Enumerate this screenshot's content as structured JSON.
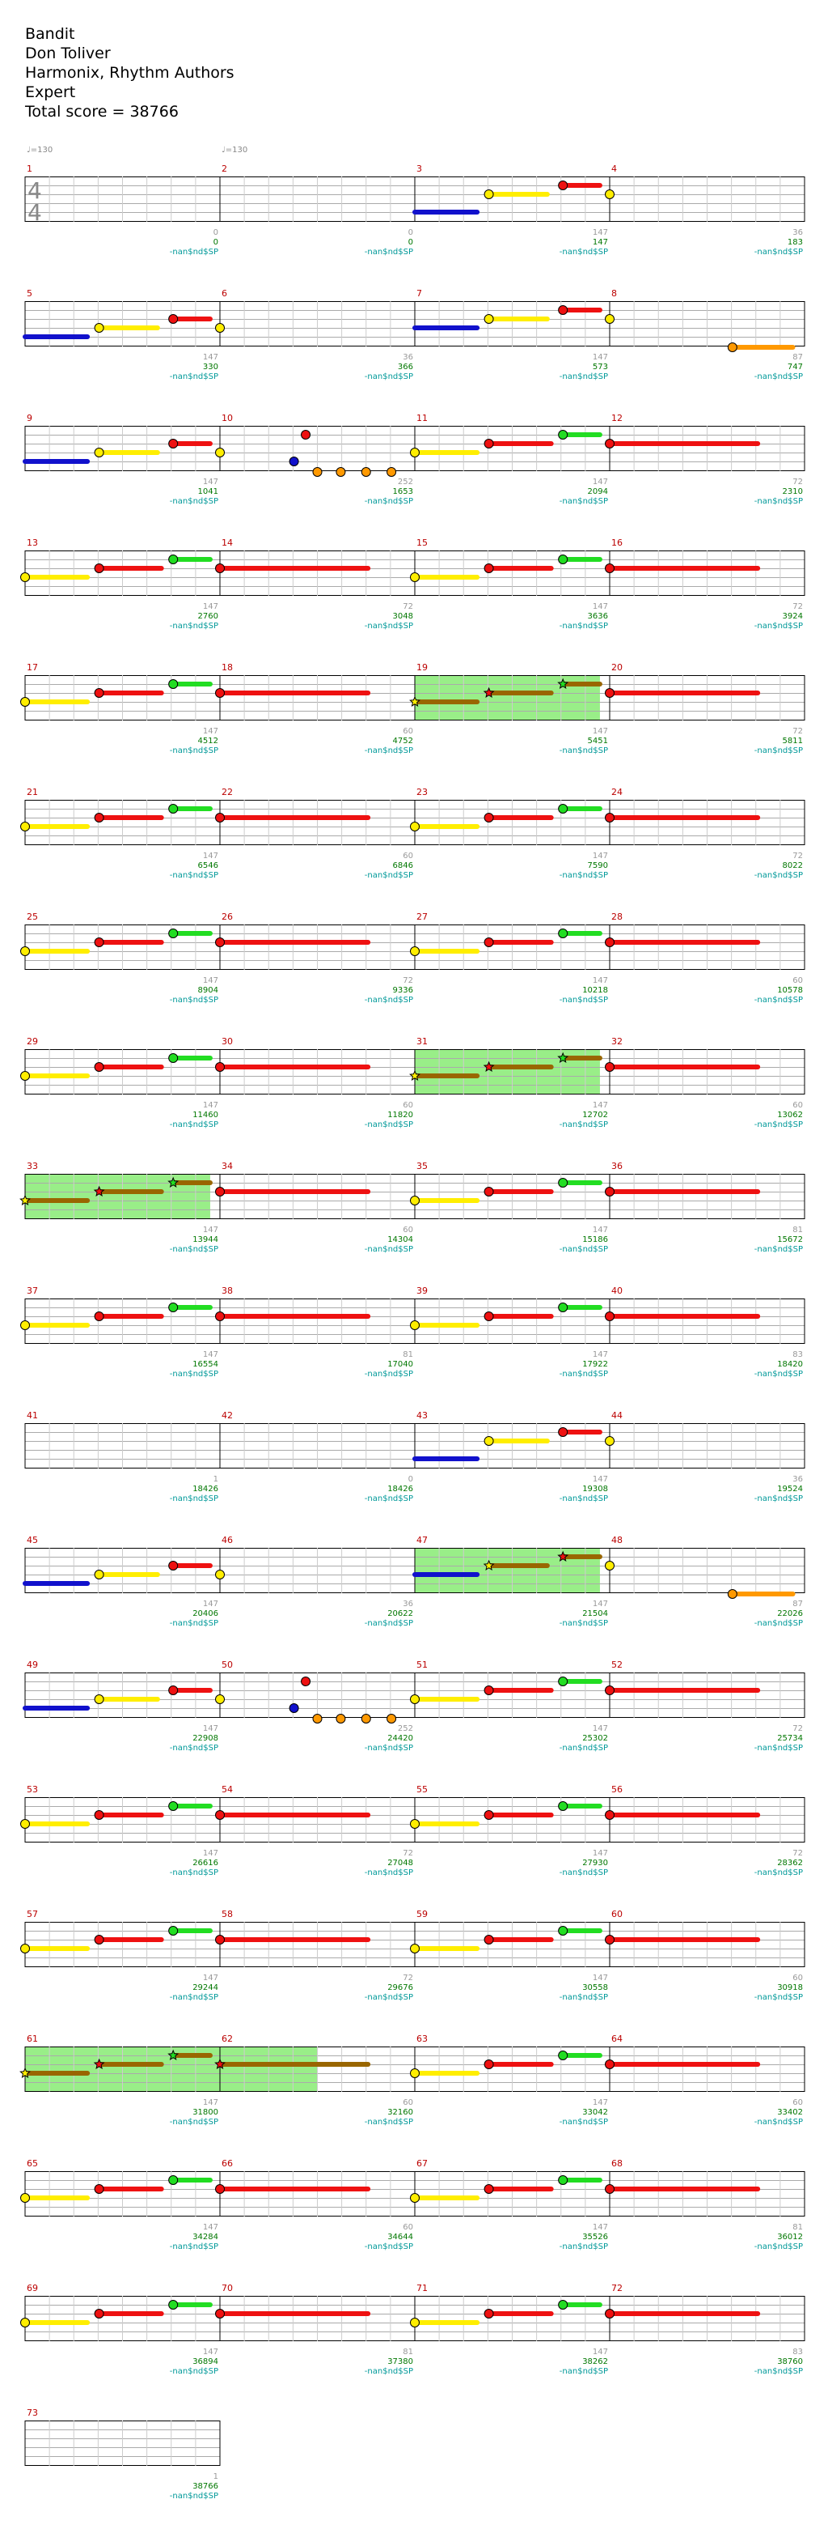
{
  "song": {
    "title": "Bandit",
    "artist": "Don Toliver",
    "charter": "Harmonix, Rhythm Authors",
    "difficulty": "Expert",
    "total_score_label": "Total score = 38766"
  },
  "chart_data": {
    "type": "note-chart",
    "tempo_marks": [
      {
        "measure": 1,
        "label": "♩=130"
      },
      {
        "measure": 2,
        "label": "♩=130"
      }
    ],
    "time_signature": {
      "measure": 1,
      "top": "4",
      "bottom": "4"
    },
    "rows": [
      [
        {
          "m": 1,
          "ticks": "",
          "score": "",
          "sp": ""
        },
        {
          "m": 2,
          "ticks": "0",
          "score": "0",
          "sp": "-nan$nd$SP"
        },
        {
          "m": 3,
          "ticks": "0",
          "score": "0",
          "sp": "-nan$nd$SP"
        },
        {
          "m": 4,
          "ticks": "147",
          "score": "147",
          "sp": "-nan$nd$SP",
          "end": {
            "ticks": "36",
            "score": "183",
            "sp": "-nan$nd$SP"
          }
        }
      ],
      [
        {
          "m": 5,
          "ticks": "",
          "score": "",
          "sp": ""
        },
        {
          "m": 6,
          "ticks": "147",
          "score": "330",
          "sp": "-nan$nd$SP"
        },
        {
          "m": 7,
          "ticks": "36",
          "score": "366",
          "sp": "-nan$nd$SP"
        },
        {
          "m": 8,
          "ticks": "147",
          "score": "573",
          "sp": "-nan$nd$SP",
          "end": {
            "ticks": "87",
            "score": "747",
            "sp": "-nan$nd$SP"
          }
        }
      ],
      [
        {
          "m": 9,
          "ticks": "",
          "score": "",
          "sp": ""
        },
        {
          "m": 10,
          "ticks": "147",
          "score": "1041",
          "sp": "-nan$nd$SP"
        },
        {
          "m": 11,
          "ticks": "252",
          "score": "1653",
          "sp": "-nan$nd$SP"
        },
        {
          "m": 12,
          "ticks": "147",
          "score": "2094",
          "sp": "-nan$nd$SP",
          "end": {
            "ticks": "72",
            "score": "2310",
            "sp": "-nan$nd$SP"
          }
        }
      ],
      [
        {
          "m": 13,
          "ticks": "",
          "score": "",
          "sp": ""
        },
        {
          "m": 14,
          "ticks": "147",
          "score": "2760",
          "sp": "-nan$nd$SP"
        },
        {
          "m": 15,
          "ticks": "72",
          "score": "3048",
          "sp": "-nan$nd$SP"
        },
        {
          "m": 16,
          "ticks": "147",
          "score": "3636",
          "sp": "-nan$nd$SP",
          "end": {
            "ticks": "72",
            "score": "3924",
            "sp": "-nan$nd$SP"
          }
        }
      ],
      [
        {
          "m": 17,
          "ticks": "",
          "score": "",
          "sp": ""
        },
        {
          "m": 18,
          "ticks": "147",
          "score": "4512",
          "sp": "-nan$nd$SP"
        },
        {
          "m": 19,
          "ticks": "60",
          "score": "4752",
          "sp": "-nan$nd$SP"
        },
        {
          "m": 20,
          "ticks": "147",
          "score": "5451",
          "sp": "-nan$nd$SP",
          "end": {
            "ticks": "72",
            "score": "5811",
            "sp": "-nan$nd$SP"
          }
        }
      ],
      [
        {
          "m": 21,
          "ticks": "",
          "score": "",
          "sp": ""
        },
        {
          "m": 22,
          "ticks": "147",
          "score": "6546",
          "sp": "-nan$nd$SP"
        },
        {
          "m": 23,
          "ticks": "60",
          "score": "6846",
          "sp": "-nan$nd$SP"
        },
        {
          "m": 24,
          "ticks": "147",
          "score": "7590",
          "sp": "-nan$nd$SP",
          "end": {
            "ticks": "72",
            "score": "8022",
            "sp": "-nan$nd$SP"
          }
        }
      ],
      [
        {
          "m": 25,
          "ticks": "",
          "score": "",
          "sp": ""
        },
        {
          "m": 26,
          "ticks": "147",
          "score": "8904",
          "sp": "-nan$nd$SP"
        },
        {
          "m": 27,
          "ticks": "72",
          "score": "9336",
          "sp": "-nan$nd$SP"
        },
        {
          "m": 28,
          "ticks": "147",
          "score": "10218",
          "sp": "-nan$nd$SP",
          "end": {
            "ticks": "60",
            "score": "10578",
            "sp": "-nan$nd$SP"
          }
        }
      ],
      [
        {
          "m": 29,
          "ticks": "",
          "score": "",
          "sp": ""
        },
        {
          "m": 30,
          "ticks": "147",
          "score": "11460",
          "sp": "-nan$nd$SP"
        },
        {
          "m": 31,
          "ticks": "60",
          "score": "11820",
          "sp": "-nan$nd$SP"
        },
        {
          "m": 32,
          "ticks": "147",
          "score": "12702",
          "sp": "-nan$nd$SP",
          "end": {
            "ticks": "60",
            "score": "13062",
            "sp": "-nan$nd$SP"
          }
        }
      ],
      [
        {
          "m": 33,
          "ticks": "",
          "score": "",
          "sp": ""
        },
        {
          "m": 34,
          "ticks": "147",
          "score": "13944",
          "sp": "-nan$nd$SP"
        },
        {
          "m": 35,
          "ticks": "60",
          "score": "14304",
          "sp": "-nan$nd$SP"
        },
        {
          "m": 36,
          "ticks": "147",
          "score": "15186",
          "sp": "-nan$nd$SP",
          "end": {
            "ticks": "81",
            "score": "15672",
            "sp": "-nan$nd$SP"
          }
        }
      ],
      [
        {
          "m": 37,
          "ticks": "",
          "score": "",
          "sp": ""
        },
        {
          "m": 38,
          "ticks": "147",
          "score": "16554",
          "sp": "-nan$nd$SP"
        },
        {
          "m": 39,
          "ticks": "81",
          "score": "17040",
          "sp": "-nan$nd$SP"
        },
        {
          "m": 40,
          "ticks": "147",
          "score": "17922",
          "sp": "-nan$nd$SP",
          "end": {
            "ticks": "83",
            "score": "18420",
            "sp": "-nan$nd$SP"
          }
        }
      ],
      [
        {
          "m": 41,
          "ticks": "",
          "score": "",
          "sp": ""
        },
        {
          "m": 42,
          "ticks": "1",
          "score": "18426",
          "sp": "-nan$nd$SP"
        },
        {
          "m": 43,
          "ticks": "0",
          "score": "18426",
          "sp": "-nan$nd$SP"
        },
        {
          "m": 44,
          "ticks": "147",
          "score": "19308",
          "sp": "-nan$nd$SP",
          "end": {
            "ticks": "36",
            "score": "19524",
            "sp": "-nan$nd$SP"
          }
        }
      ],
      [
        {
          "m": 45,
          "ticks": "",
          "score": "",
          "sp": ""
        },
        {
          "m": 46,
          "ticks": "147",
          "score": "20406",
          "sp": "-nan$nd$SP"
        },
        {
          "m": 47,
          "ticks": "36",
          "score": "20622",
          "sp": "-nan$nd$SP"
        },
        {
          "m": 48,
          "ticks": "147",
          "score": "21504",
          "sp": "-nan$nd$SP",
          "end": {
            "ticks": "87",
            "score": "22026",
            "sp": "-nan$nd$SP"
          }
        }
      ],
      [
        {
          "m": 49,
          "ticks": "",
          "score": "",
          "sp": ""
        },
        {
          "m": 50,
          "ticks": "147",
          "score": "22908",
          "sp": "-nan$nd$SP"
        },
        {
          "m": 51,
          "ticks": "252",
          "score": "24420",
          "sp": "-nan$nd$SP"
        },
        {
          "m": 52,
          "ticks": "147",
          "score": "25302",
          "sp": "-nan$nd$SP",
          "end": {
            "ticks": "72",
            "score": "25734",
            "sp": "-nan$nd$SP"
          }
        }
      ],
      [
        {
          "m": 53,
          "ticks": "",
          "score": "",
          "sp": ""
        },
        {
          "m": 54,
          "ticks": "147",
          "score": "26616",
          "sp": "-nan$nd$SP"
        },
        {
          "m": 55,
          "ticks": "72",
          "score": "27048",
          "sp": "-nan$nd$SP"
        },
        {
          "m": 56,
          "ticks": "147",
          "score": "27930",
          "sp": "-nan$nd$SP",
          "end": {
            "ticks": "72",
            "score": "28362",
            "sp": "-nan$nd$SP"
          }
        }
      ],
      [
        {
          "m": 57,
          "ticks": "",
          "score": "",
          "sp": ""
        },
        {
          "m": 58,
          "ticks": "147",
          "score": "29244",
          "sp": "-nan$nd$SP"
        },
        {
          "m": 59,
          "ticks": "72",
          "score": "29676",
          "sp": "-nan$nd$SP"
        },
        {
          "m": 60,
          "ticks": "147",
          "score": "30558",
          "sp": "-nan$nd$SP",
          "end": {
            "ticks": "60",
            "score": "30918",
            "sp": "-nan$nd$SP"
          }
        }
      ],
      [
        {
          "m": 61,
          "ticks": "",
          "score": "",
          "sp": ""
        },
        {
          "m": 62,
          "ticks": "147",
          "score": "31800",
          "sp": "-nan$nd$SP"
        },
        {
          "m": 63,
          "ticks": "60",
          "score": "32160",
          "sp": "-nan$nd$SP"
        },
        {
          "m": 64,
          "ticks": "147",
          "score": "33042",
          "sp": "-nan$nd$SP",
          "end": {
            "ticks": "60",
            "score": "33402",
            "sp": "-nan$nd$SP"
          }
        }
      ],
      [
        {
          "m": 65,
          "ticks": "",
          "score": "",
          "sp": ""
        },
        {
          "m": 66,
          "ticks": "147",
          "score": "34284",
          "sp": "-nan$nd$SP"
        },
        {
          "m": 67,
          "ticks": "60",
          "score": "34644",
          "sp": "-nan$nd$SP"
        },
        {
          "m": 68,
          "ticks": "147",
          "score": "35526",
          "sp": "-nan$nd$SP",
          "end": {
            "ticks": "81",
            "score": "36012",
            "sp": "-nan$nd$SP"
          }
        }
      ],
      [
        {
          "m": 69,
          "ticks": "",
          "score": "",
          "sp": ""
        },
        {
          "m": 70,
          "ticks": "147",
          "score": "36894",
          "sp": "-nan$nd$SP"
        },
        {
          "m": 71,
          "ticks": "81",
          "score": "37380",
          "sp": "-nan$nd$SP"
        },
        {
          "m": 72,
          "ticks": "147",
          "score": "38262",
          "sp": "-nan$nd$SP",
          "end": {
            "ticks": "83",
            "score": "38760",
            "sp": "-nan$nd$SP"
          }
        }
      ],
      [
        {
          "m": 73,
          "ticks": "",
          "score": "",
          "sp": "",
          "end": {
            "ticks": "1",
            "score": "38766",
            "sp": "-nan$nd$SP"
          }
        }
      ]
    ],
    "colors": {
      "green": "#22dd22",
      "red": "#ee1111",
      "yellow": "#ffee00",
      "blue": "#1111cc",
      "orange": "#ff9900",
      "starpower_fill": "#99ee88",
      "starpower_sustain": "#996600",
      "measure_number": "#bb0000",
      "score": "#007700",
      "sp_label": "#009999",
      "ticks": "#999999"
    }
  }
}
